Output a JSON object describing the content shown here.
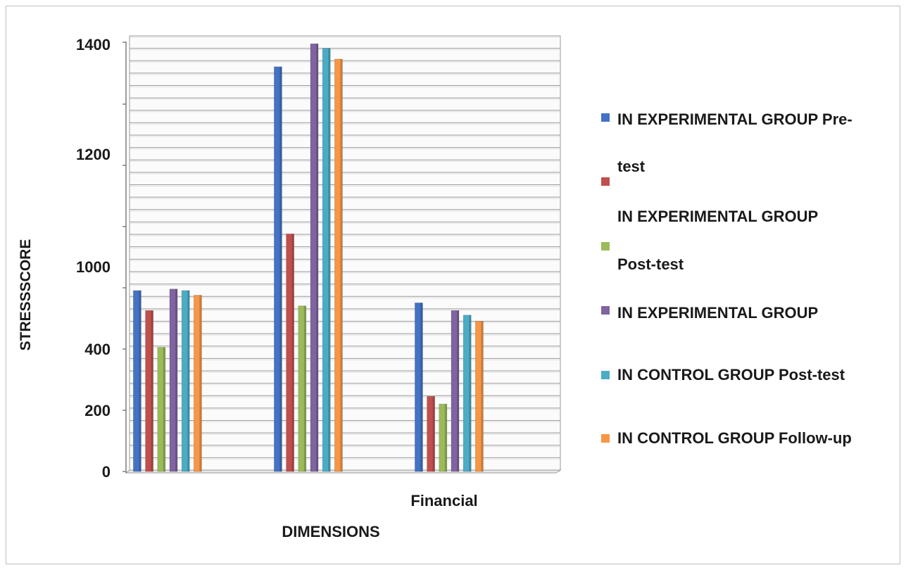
{
  "chart_data": {
    "type": "bar",
    "xlabel": "DIMENSIONS",
    "ylabel": "STRESSSCORE",
    "y_tick_labels": [
      "0",
      "200",
      "400",
      "1000",
      "1200",
      "1400"
    ],
    "ylim": [
      0,
      1400
    ],
    "grid": true,
    "legend_position": "right",
    "categories": [
      "",
      "",
      "Financial"
    ],
    "series": [
      {
        "name": "IN EXPERIMENTAL GROUP Pre-test",
        "color": "#4472C4",
        "values": [
          590,
          1320,
          550
        ]
      },
      {
        "name": "IN EXPERIMENTAL GROUP",
        "color": "#C0504D",
        "values": [
          525,
          775,
          245
        ]
      },
      {
        "name": "Post-test",
        "color": "#9BBB59",
        "values": [
          405,
          540,
          220
        ]
      },
      {
        "name": "IN EXPERIMENTAL GROUP",
        "color": "#8064A2",
        "values": [
          595,
          1395,
          525
        ]
      },
      {
        "name": "IN CONTROL GROUP Post-test",
        "color": "#4BACC6",
        "values": [
          590,
          1380,
          510
        ]
      },
      {
        "name": "IN CONTROL GROUP Follow-up",
        "color": "#F79646",
        "values": [
          575,
          1345,
          490
        ]
      }
    ],
    "legend_lines": [
      "IN EXPERIMENTAL GROUP Pre-",
      "test",
      "IN EXPERIMENTAL GROUP",
      "Post-test",
      "IN EXPERIMENTAL GROUP",
      "IN CONTROL GROUP Post-test",
      "IN CONTROL GROUP Follow-up"
    ]
  }
}
